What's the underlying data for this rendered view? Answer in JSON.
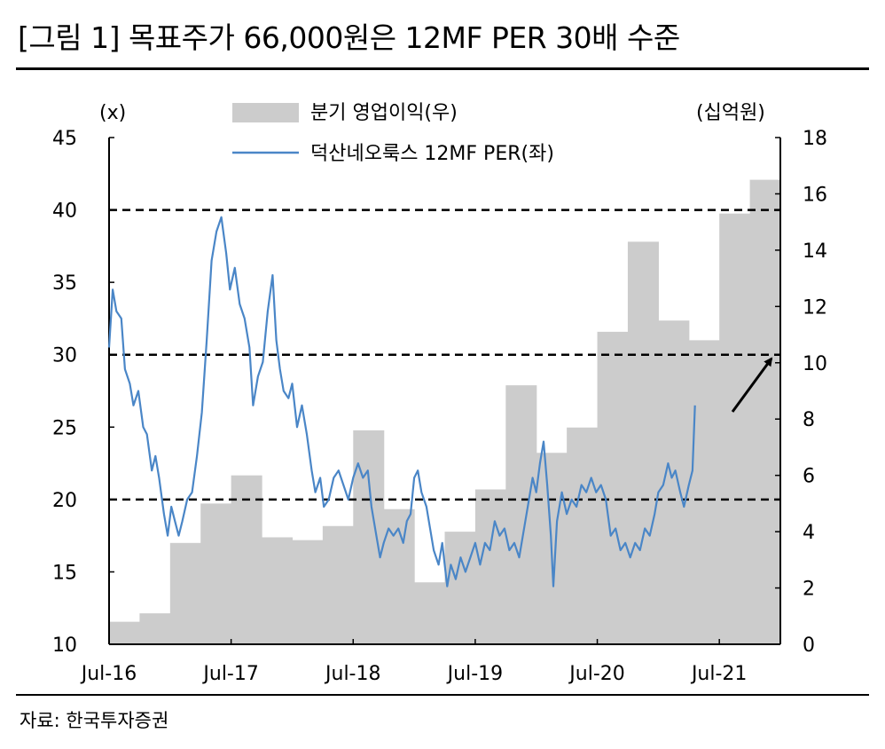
{
  "header": {
    "title": "[그림 1] 목표주가 66,000원은 12MF PER 30배 수준"
  },
  "footer": {
    "source": "자료: 한국투자증권"
  },
  "colors": {
    "bar": "#cccccc",
    "line": "#4a86c7",
    "axis": "#000000"
  },
  "chart_data": {
    "type": "bar+line",
    "title": "",
    "left_axis_label": "(x)",
    "right_axis_label": "(십억원)",
    "left_ylim": [
      10,
      45
    ],
    "left_ticks": [
      10,
      15,
      20,
      25,
      30,
      35,
      40,
      45
    ],
    "right_ylim": [
      0,
      18
    ],
    "right_ticks": [
      0,
      2,
      4,
      6,
      8,
      10,
      12,
      14,
      16,
      18
    ],
    "x_range": [
      2016.5,
      2022.0
    ],
    "x_ticks": [
      {
        "label": "Jul-16",
        "x": 2016.5
      },
      {
        "label": "Jul-17",
        "x": 2017.5
      },
      {
        "label": "Jul-18",
        "x": 2018.5
      },
      {
        "label": "Jul-19",
        "x": 2019.5
      },
      {
        "label": "Jul-20",
        "x": 2020.5
      },
      {
        "label": "Jul-21",
        "x": 2021.5
      }
    ],
    "legend": [
      "분기 영업이익(우)",
      "덕산네오룩스 12MF PER(좌)"
    ],
    "reference_lines_left": [
      40,
      30,
      20
    ],
    "bars": {
      "name": "분기 영업이익(우)",
      "axis": "right",
      "values": [
        0.8,
        1.1,
        3.6,
        5.0,
        6.0,
        3.8,
        3.7,
        4.2,
        7.6,
        4.8,
        2.2,
        4.0,
        5.5,
        9.2,
        6.8,
        7.7,
        11.1,
        14.3,
        11.5,
        10.8,
        15.3,
        16.5
      ]
    },
    "series": [
      {
        "name": "덕산네오룩스 12MF PER(좌)",
        "axis": "left",
        "points": [
          [
            2016.5,
            30.5
          ],
          [
            2016.53,
            34.5
          ],
          [
            2016.56,
            33.0
          ],
          [
            2016.6,
            32.5
          ],
          [
            2016.63,
            29.0
          ],
          [
            2016.67,
            28.0
          ],
          [
            2016.7,
            26.5
          ],
          [
            2016.74,
            27.5
          ],
          [
            2016.78,
            25.0
          ],
          [
            2016.81,
            24.5
          ],
          [
            2016.85,
            22.0
          ],
          [
            2016.88,
            23.0
          ],
          [
            2016.91,
            21.5
          ],
          [
            2016.95,
            19.0
          ],
          [
            2016.98,
            17.5
          ],
          [
            2017.01,
            19.5
          ],
          [
            2017.04,
            18.5
          ],
          [
            2017.07,
            17.5
          ],
          [
            2017.1,
            18.5
          ],
          [
            2017.14,
            20.0
          ],
          [
            2017.18,
            20.5
          ],
          [
            2017.22,
            23.0
          ],
          [
            2017.26,
            26.0
          ],
          [
            2017.3,
            31.0
          ],
          [
            2017.34,
            36.5
          ],
          [
            2017.38,
            38.5
          ],
          [
            2017.42,
            39.5
          ],
          [
            2017.46,
            37.0
          ],
          [
            2017.49,
            34.5
          ],
          [
            2017.53,
            36.0
          ],
          [
            2017.57,
            33.5
          ],
          [
            2017.61,
            32.5
          ],
          [
            2017.65,
            30.5
          ],
          [
            2017.68,
            26.5
          ],
          [
            2017.72,
            28.5
          ],
          [
            2017.76,
            29.5
          ],
          [
            2017.8,
            33.0
          ],
          [
            2017.84,
            35.5
          ],
          [
            2017.87,
            31.0
          ],
          [
            2017.9,
            29.0
          ],
          [
            2017.93,
            27.5
          ],
          [
            2017.97,
            27.0
          ],
          [
            2018.0,
            28.0
          ],
          [
            2018.04,
            25.0
          ],
          [
            2018.08,
            26.5
          ],
          [
            2018.12,
            24.5
          ],
          [
            2018.16,
            22.0
          ],
          [
            2018.19,
            20.5
          ],
          [
            2018.23,
            21.5
          ],
          [
            2018.26,
            19.5
          ],
          [
            2018.3,
            20.0
          ],
          [
            2018.34,
            21.5
          ],
          [
            2018.38,
            22.0
          ],
          [
            2018.42,
            21.0
          ],
          [
            2018.46,
            20.0
          ],
          [
            2018.5,
            21.5
          ],
          [
            2018.54,
            22.5
          ],
          [
            2018.58,
            21.5
          ],
          [
            2018.62,
            22.0
          ],
          [
            2018.65,
            19.5
          ],
          [
            2018.69,
            17.5
          ],
          [
            2018.72,
            16.0
          ],
          [
            2018.75,
            17.0
          ],
          [
            2018.79,
            18.0
          ],
          [
            2018.83,
            17.5
          ],
          [
            2018.87,
            18.0
          ],
          [
            2018.91,
            17.0
          ],
          [
            2018.94,
            18.5
          ],
          [
            2018.97,
            19.0
          ],
          [
            2019.0,
            21.5
          ],
          [
            2019.03,
            22.0
          ],
          [
            2019.06,
            20.5
          ],
          [
            2019.1,
            19.5
          ],
          [
            2019.13,
            18.0
          ],
          [
            2019.16,
            16.5
          ],
          [
            2019.2,
            15.5
          ],
          [
            2019.23,
            17.0
          ],
          [
            2019.27,
            14.0
          ],
          [
            2019.3,
            15.5
          ],
          [
            2019.34,
            14.5
          ],
          [
            2019.38,
            16.0
          ],
          [
            2019.42,
            15.0
          ],
          [
            2019.46,
            16.0
          ],
          [
            2019.5,
            17.0
          ],
          [
            2019.54,
            15.5
          ],
          [
            2019.58,
            17.0
          ],
          [
            2019.62,
            16.5
          ],
          [
            2019.66,
            18.5
          ],
          [
            2019.7,
            17.5
          ],
          [
            2019.74,
            18.0
          ],
          [
            2019.78,
            16.5
          ],
          [
            2019.82,
            17.0
          ],
          [
            2019.86,
            16.0
          ],
          [
            2019.9,
            18.0
          ],
          [
            2019.94,
            20.0
          ],
          [
            2019.97,
            21.5
          ],
          [
            2020.0,
            20.5
          ],
          [
            2020.03,
            22.5
          ],
          [
            2020.06,
            24.0
          ],
          [
            2020.09,
            21.0
          ],
          [
            2020.12,
            17.5
          ],
          [
            2020.14,
            14.0
          ],
          [
            2020.17,
            18.5
          ],
          [
            2020.21,
            20.5
          ],
          [
            2020.25,
            19.0
          ],
          [
            2020.29,
            20.0
          ],
          [
            2020.33,
            19.5
          ],
          [
            2020.37,
            21.0
          ],
          [
            2020.41,
            20.5
          ],
          [
            2020.45,
            21.5
          ],
          [
            2020.49,
            20.5
          ],
          [
            2020.53,
            21.0
          ],
          [
            2020.57,
            20.0
          ],
          [
            2020.61,
            17.5
          ],
          [
            2020.65,
            18.0
          ],
          [
            2020.69,
            16.5
          ],
          [
            2020.73,
            17.0
          ],
          [
            2020.77,
            16.0
          ],
          [
            2020.81,
            17.0
          ],
          [
            2020.85,
            16.5
          ],
          [
            2020.89,
            18.0
          ],
          [
            2020.93,
            17.5
          ],
          [
            2020.97,
            19.0
          ],
          [
            2021.0,
            20.5
          ],
          [
            2021.04,
            21.0
          ],
          [
            2021.08,
            22.5
          ],
          [
            2021.11,
            21.5
          ],
          [
            2021.14,
            22.0
          ],
          [
            2021.18,
            20.5
          ],
          [
            2021.21,
            19.5
          ],
          [
            2021.25,
            21.0
          ],
          [
            2021.28,
            22.0
          ],
          [
            2021.3,
            26.5
          ]
        ]
      }
    ],
    "annotations": [
      "arrow pointing to 30x PER line"
    ]
  }
}
